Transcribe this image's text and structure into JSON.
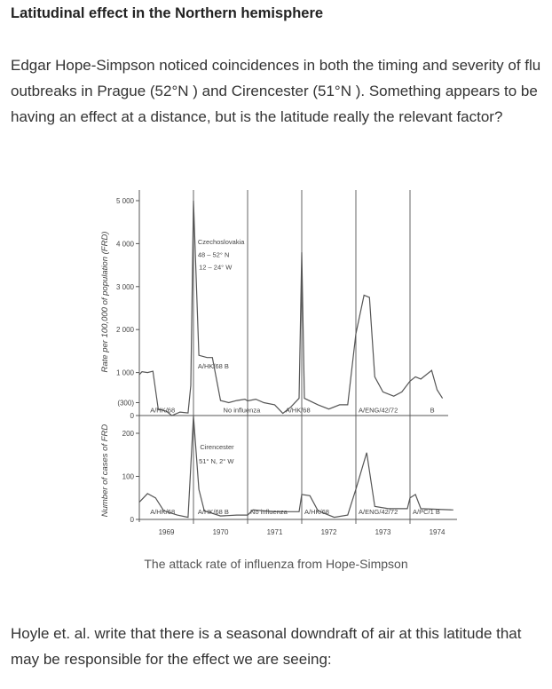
{
  "title": "Latitudinal effect in the Northern hemisphere",
  "paragraph1": "Edgar Hope-Simpson noticed coincidences in both the timing and severity of flu outbreaks in Prague (52°N ) and Cirencester (51°N ). Something appears to be having an effect at a distance, but is the latitude really the relevant factor?",
  "caption": "The attack rate of influenza from Hope-Simpson",
  "paragraph2": "Hoyle et. al. write that there is a seasonal downdraft of air at this latitude that may be responsible for the effect we are seeing:",
  "chart_data": [
    {
      "type": "line",
      "name": "Czechoslovakia",
      "ylabel": "Rate per 100,000 of population (FRD)",
      "yticks": [
        {
          "v": 0,
          "label": "0"
        },
        {
          "v": 300,
          "label": "(300)"
        },
        {
          "v": 1000,
          "label": "1 000"
        },
        {
          "v": 2000,
          "label": "2 000"
        },
        {
          "v": 3000,
          "label": "3 000"
        },
        {
          "v": 4000,
          "label": "4 000"
        },
        {
          "v": 5000,
          "label": "5 000"
        }
      ],
      "ylim": [
        0,
        5000
      ],
      "x": [
        1969.0,
        1969.05,
        1969.15,
        1969.25,
        1969.35,
        1969.5,
        1969.6,
        1969.75,
        1969.9,
        1969.95,
        1970.0,
        1970.1,
        1970.25,
        1970.35,
        1970.5,
        1970.65,
        1970.8,
        1970.95,
        1971.0,
        1971.15,
        1971.3,
        1971.5,
        1971.65,
        1971.8,
        1971.95,
        1972.0,
        1972.05,
        1972.3,
        1972.5,
        1972.7,
        1972.85,
        1973.0,
        1973.15,
        1973.25,
        1973.35,
        1973.5,
        1973.7,
        1973.85,
        1974.0,
        1974.1,
        1974.2,
        1974.4,
        1974.5,
        1974.6
      ],
      "values": [
        950,
        1020,
        1000,
        1030,
        150,
        100,
        0,
        80,
        60,
        700,
        5000,
        1400,
        1350,
        1350,
        350,
        300,
        350,
        380,
        340,
        380,
        300,
        250,
        50,
        200,
        400,
        3800,
        400,
        250,
        150,
        250,
        250,
        1900,
        2800,
        2750,
        900,
        550,
        450,
        550,
        800,
        900,
        850,
        1050,
        600,
        400
      ],
      "annotations": [
        {
          "text": "Czechoslovakia",
          "t": 1970.08,
          "v": 3990
        },
        {
          "text": "48 – 52° N",
          "t": 1970.08,
          "v": 3690
        },
        {
          "text": "12 – 24° W",
          "t": 1970.1,
          "v": 3400
        },
        {
          "text": "A/HK/68  B",
          "t": 1970.08,
          "v": 1100
        },
        {
          "text": "A/HK/68",
          "t": 1969.2,
          "v": 70
        },
        {
          "text": "No influenza",
          "t": 1970.55,
          "v": 70
        },
        {
          "text": "A/HK/68",
          "t": 1971.7,
          "v": 70
        },
        {
          "text": "A/ENG/42/72",
          "t": 1973.05,
          "v": 70
        },
        {
          "text": "B",
          "t": 1974.37,
          "v": 70
        }
      ]
    },
    {
      "type": "line",
      "name": "Cirencester",
      "ylabel": "Number of cases of FRD",
      "yticks": [
        {
          "v": 0,
          "label": "0"
        },
        {
          "v": 100,
          "label": "100"
        },
        {
          "v": 200,
          "label": "200"
        }
      ],
      "ylim": [
        0,
        250
      ],
      "x": [
        1969.0,
        1969.15,
        1969.3,
        1969.45,
        1969.7,
        1969.9,
        1970.0,
        1970.1,
        1970.2,
        1970.5,
        1970.8,
        1971.0,
        1971.1,
        1971.5,
        1971.95,
        1972.0,
        1972.15,
        1972.3,
        1972.6,
        1972.85,
        1973.0,
        1973.2,
        1973.35,
        1973.6,
        1973.95,
        1974.0,
        1974.1,
        1974.2,
        1974.8
      ],
      "values": [
        40,
        60,
        50,
        20,
        10,
        5,
        240,
        70,
        20,
        8,
        10,
        10,
        22,
        18,
        18,
        58,
        55,
        20,
        5,
        10,
        70,
        155,
        30,
        25,
        25,
        50,
        58,
        25,
        22
      ],
      "annotations": [
        {
          "text": "Cirencester",
          "t": 1970.12,
          "v": 163
        },
        {
          "text": "51° N, 2° W",
          "t": 1970.1,
          "v": 130
        },
        {
          "text": "A/HK/68",
          "t": 1969.2,
          "v": 12
        },
        {
          "text": "A/HK/68  B",
          "t": 1970.08,
          "v": 12
        },
        {
          "text": "No influenza",
          "t": 1971.05,
          "v": 12
        },
        {
          "text": "A/HK/68",
          "t": 1972.05,
          "v": 12
        },
        {
          "text": "A/ENG/42/72",
          "t": 1973.05,
          "v": 12
        },
        {
          "text": "A/PC/1  B",
          "t": 1974.05,
          "v": 12
        }
      ]
    }
  ],
  "x_axis": {
    "year_labels": [
      "1969",
      "1970",
      "1971",
      "1972",
      "1973",
      "1974"
    ],
    "xlim": [
      1969.0,
      1974.8
    ]
  }
}
